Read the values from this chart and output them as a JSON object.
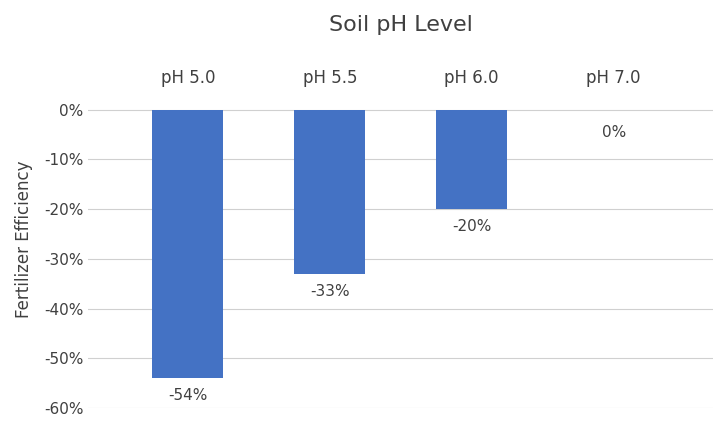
{
  "title": "Soil pH Level",
  "ylabel": "Fertilizer Efficiency",
  "categories": [
    "pH 5.0",
    "pH 5.5",
    "pH 6.0",
    "pH 7.0"
  ],
  "values": [
    -54,
    -33,
    -20,
    0
  ],
  "bar_color": "#4472C4",
  "bar_width": 0.5,
  "ylim": [
    -60,
    5
  ],
  "yticks": [
    0,
    -10,
    -20,
    -30,
    -40,
    -50,
    -60
  ],
  "value_labels": [
    "-54%",
    "-33%",
    "-20%",
    "0%"
  ],
  "value_label_offsets": [
    -2,
    -2,
    -2,
    -2
  ],
  "background_color": "#ffffff",
  "grid_color": "#d0d0d0",
  "title_fontsize": 16,
  "label_fontsize": 12,
  "tick_fontsize": 11,
  "bar_label_fontsize": 11,
  "category_label_fontsize": 12,
  "text_color": "#404040"
}
